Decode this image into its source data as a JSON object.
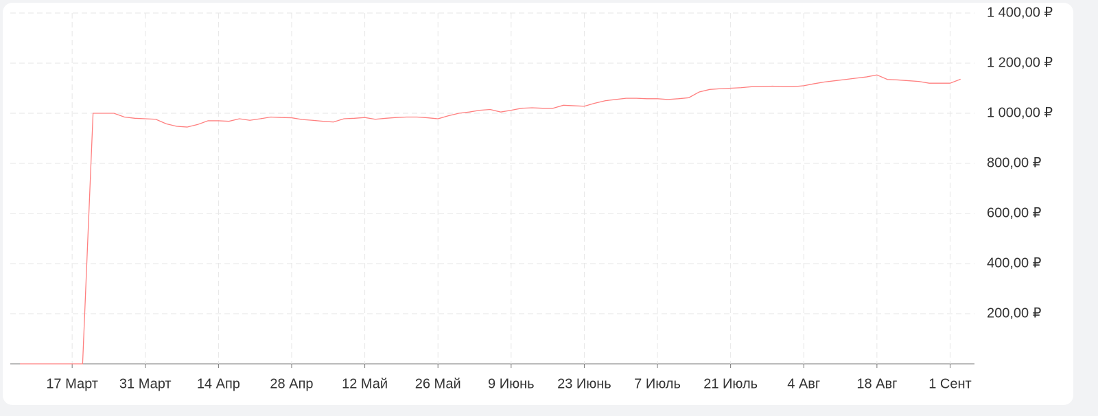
{
  "chart_data": {
    "type": "line",
    "categories": [
      null,
      null,
      null,
      null,
      null,
      "17 Март",
      null,
      null,
      null,
      null,
      null,
      null,
      "31 Март",
      null,
      null,
      null,
      null,
      null,
      null,
      "14 Апр",
      null,
      null,
      null,
      null,
      null,
      null,
      "28 Апр",
      null,
      null,
      null,
      null,
      null,
      null,
      "12 Май",
      null,
      null,
      null,
      null,
      null,
      null,
      "26 Май",
      null,
      null,
      null,
      null,
      null,
      null,
      "9 Июнь",
      null,
      null,
      null,
      null,
      null,
      null,
      "23 Июнь",
      null,
      null,
      null,
      null,
      null,
      null,
      "7 Июль",
      null,
      null,
      null,
      null,
      null,
      null,
      "21 Июль",
      null,
      null,
      null,
      null,
      null,
      null,
      "4 Авг",
      null,
      null,
      null,
      null,
      null,
      null,
      "18 Авг",
      null,
      null,
      null,
      null,
      null,
      null,
      "1 Сент",
      null
    ],
    "values": [
      0,
      0,
      0,
      0,
      0,
      0,
      0,
      1000,
      1000,
      1000,
      985,
      980,
      978,
      976,
      958,
      948,
      945,
      955,
      970,
      970,
      968,
      978,
      972,
      978,
      985,
      983,
      982,
      975,
      972,
      968,
      965,
      978,
      980,
      983,
      976,
      980,
      983,
      985,
      985,
      982,
      978,
      990,
      1000,
      1005,
      1012,
      1015,
      1005,
      1012,
      1020,
      1022,
      1020,
      1020,
      1032,
      1030,
      1028,
      1040,
      1050,
      1055,
      1060,
      1060,
      1058,
      1058,
      1055,
      1058,
      1062,
      1085,
      1095,
      1098,
      1100,
      1102,
      1106,
      1106,
      1108,
      1106,
      1106,
      1110,
      1118,
      1125,
      1130,
      1135,
      1140,
      1145,
      1153,
      1135,
      1133,
      1130,
      1127,
      1120,
      1120,
      1120,
      1136
    ],
    "color": "#ff7f7f",
    "ylim": [
      0,
      1400
    ],
    "yticks": [
      {
        "value": 200,
        "label": "200,00 ₽"
      },
      {
        "value": 400,
        "label": "400,00 ₽"
      },
      {
        "value": 600,
        "label": "600,00 ₽"
      },
      {
        "value": 800,
        "label": "800,00 ₽"
      },
      {
        "value": 1000,
        "label": "1 000,00 ₽"
      },
      {
        "value": 1200,
        "label": "1 200,00 ₽"
      },
      {
        "value": 1400,
        "label": "1 400,00 ₽"
      }
    ],
    "grid": true
  }
}
